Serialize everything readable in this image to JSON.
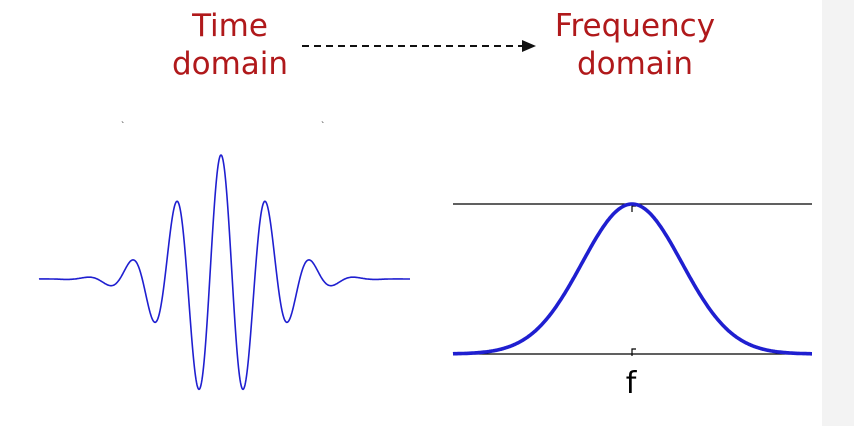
{
  "titles": {
    "time_line1": "Time",
    "time_line2": "domain",
    "freq_line1": "Frequency",
    "freq_line2": "domain"
  },
  "freq_axis_label": "f",
  "colors": {
    "title_red": "#b0191b",
    "curve_blue": "#1f1fd0",
    "axis_black": "#000000"
  }
}
